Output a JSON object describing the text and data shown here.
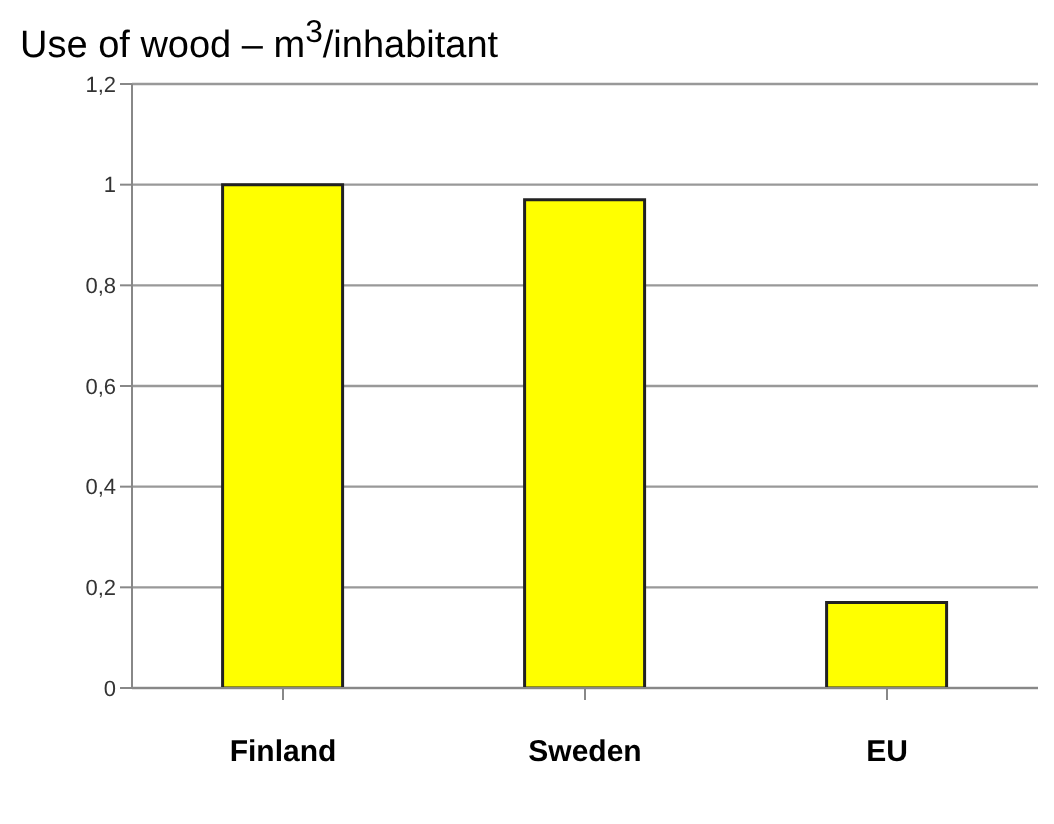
{
  "chart_data": {
    "type": "bar",
    "title": "Use of wood – m$^{3}$/inhabitant",
    "categories": [
      "Finland",
      "Sweden",
      "EU"
    ],
    "values": [
      1.0,
      0.97,
      0.17
    ],
    "color": "#ffff00",
    "ylim": [
      0,
      1.2
    ],
    "yticks": [
      0,
      {
        "value": 0.2,
        "label": "0,2"
      },
      {
        "value": 0.4,
        "label": "0,4"
      },
      {
        "value": 0.6,
        "label": "0,6"
      },
      {
        "value": 0.8,
        "label": "0,8"
      },
      1,
      {
        "value": 1.2,
        "label": "1,2"
      }
    ],
    "grid": "y",
    "legend": false
  }
}
